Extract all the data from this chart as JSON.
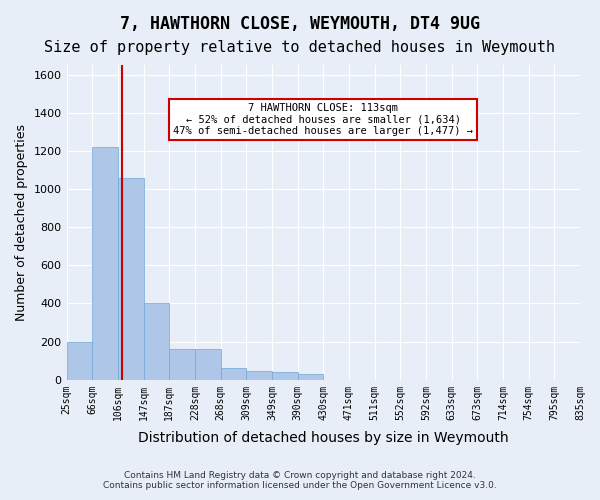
{
  "title": "7, HAWTHORN CLOSE, WEYMOUTH, DT4 9UG",
  "subtitle": "Size of property relative to detached houses in Weymouth",
  "xlabel": "Distribution of detached houses by size in Weymouth",
  "ylabel": "Number of detached properties",
  "footer_line1": "Contains HM Land Registry data © Crown copyright and database right 2024.",
  "footer_line2": "Contains public sector information licensed under the Open Government Licence v3.0.",
  "bin_labels": [
    "25sqm",
    "66sqm",
    "106sqm",
    "147sqm",
    "187sqm",
    "228sqm",
    "268sqm",
    "309sqm",
    "349sqm",
    "390sqm",
    "430sqm",
    "471sqm",
    "511sqm",
    "552sqm",
    "592sqm",
    "633sqm",
    "673sqm",
    "714sqm",
    "754sqm",
    "795sqm",
    "835sqm"
  ],
  "bar_values": [
    200,
    1220,
    1060,
    400,
    160,
    160,
    60,
    45,
    40,
    30,
    0,
    0,
    0,
    0,
    0,
    0,
    0,
    0,
    0,
    0
  ],
  "bar_color": "#aec6e8",
  "bar_edge_color": "#6fa8d6",
  "property_line_x": 2,
  "property_line_color": "#cc0000",
  "annotation_text": "7 HAWTHORN CLOSE: 113sqm\n← 52% of detached houses are smaller (1,634)\n47% of semi-detached houses are larger (1,477) →",
  "annotation_box_color": "#cc0000",
  "ylim": [
    0,
    1650
  ],
  "yticks": [
    0,
    200,
    400,
    600,
    800,
    1000,
    1200,
    1400,
    1600
  ],
  "bg_color": "#e8eef7",
  "plot_bg_color": "#e8eef7",
  "grid_color": "#ffffff",
  "title_fontsize": 12,
  "subtitle_fontsize": 11,
  "xlabel_fontsize": 10,
  "ylabel_fontsize": 9
}
